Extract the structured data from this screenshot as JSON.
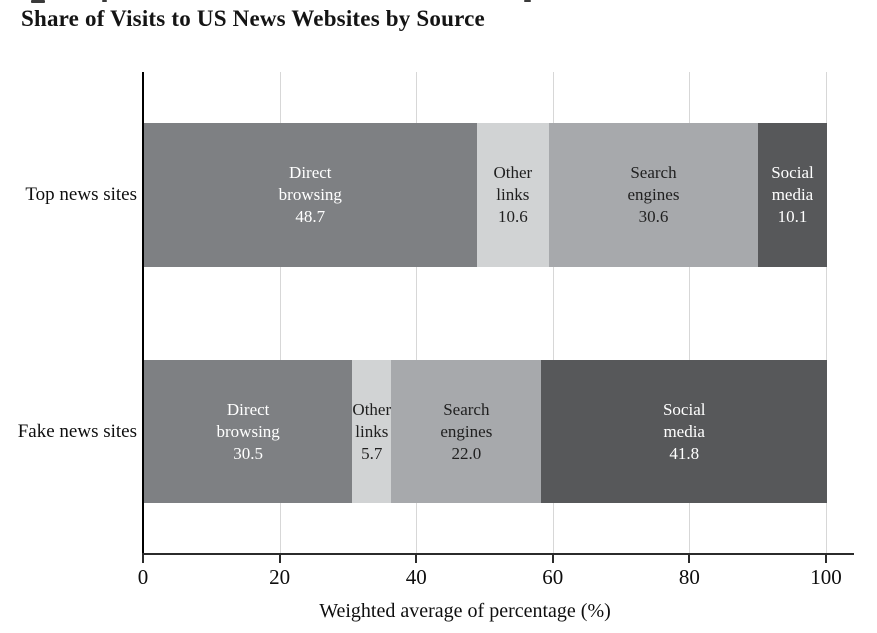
{
  "chart_data": {
    "type": "bar",
    "orientation": "horizontal",
    "stacked": true,
    "title": "Share of Visits to US News Websites by Source",
    "xlabel": "Weighted average of percentage (%)",
    "xlim": [
      0,
      100
    ],
    "x_ticks": [
      "0",
      "20",
      "40",
      "60",
      "80",
      "100"
    ],
    "grid": "vertical-light-gray",
    "categories": [
      "Top news sites",
      "Fake news sites"
    ],
    "series": [
      {
        "name": "Direct browsing",
        "values": [
          48.7,
          30.5
        ],
        "value_labels": [
          "48.7",
          "30.5"
        ],
        "color": "#7e8083",
        "text_color": "#ffffff"
      },
      {
        "name": "Other links",
        "values": [
          10.6,
          5.7
        ],
        "value_labels": [
          "10.6",
          "5.7"
        ],
        "color": "#d1d3d4",
        "text_color": "#1f1f1f"
      },
      {
        "name": "Search engines",
        "values": [
          30.6,
          22.0
        ],
        "value_labels": [
          "30.6",
          "22.0"
        ],
        "color": "#a7a9ac",
        "text_color": "#1f1f1f"
      },
      {
        "name": "Social media",
        "values": [
          10.1,
          41.8
        ],
        "value_labels": [
          "10.1",
          "41.8"
        ],
        "color": "#57585a",
        "text_color": "#ffffff"
      }
    ],
    "colors": {
      "axis": "#2b2b2b",
      "gridline": "#d7d7d7",
      "background": "#ffffff"
    }
  }
}
